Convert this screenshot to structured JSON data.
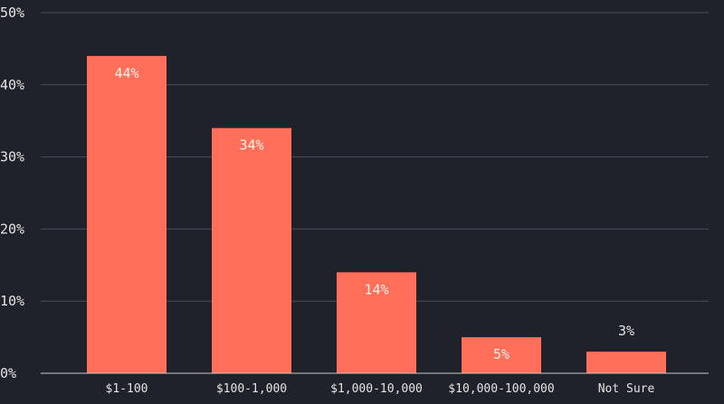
{
  "chart_data": {
    "type": "bar",
    "title": "",
    "xlabel": "",
    "ylabel": "",
    "categories": [
      "$1-100",
      "$100-1,000",
      "$1,000-10,000",
      "$10,000-100,000",
      "Not Sure"
    ],
    "values": [
      44,
      34,
      14,
      5,
      3
    ],
    "value_labels": [
      "44%",
      "34%",
      "14%",
      "5%",
      "3%"
    ],
    "ylim": [
      0,
      50
    ],
    "y_ticks": [
      0,
      10,
      20,
      30,
      40,
      50
    ],
    "y_tick_labels": [
      "0%",
      "10%",
      "20%",
      "30%",
      "40%",
      "50%"
    ],
    "grid": true,
    "legend": "none",
    "colors": {
      "background": "#20222b",
      "bar": "#ff6f59",
      "grid": "#4a4d57",
      "axis": "#c8c8c8",
      "text": "#e4e4e4",
      "label_inside": "#fff1ec"
    }
  }
}
